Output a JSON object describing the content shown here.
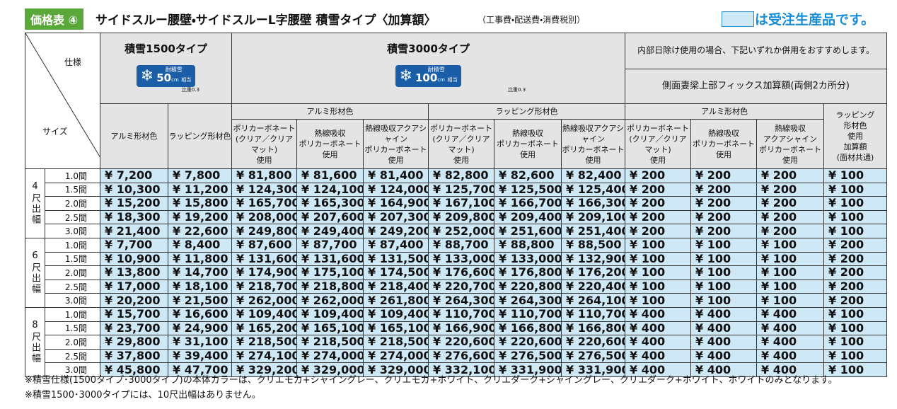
{
  "header": {
    "badge": "価格表 ④",
    "title": "サイドスルー腰壁・サイドスルーL字腰壁 積雪タイプ〈加算額〉",
    "note": "（工事費・配送費・消費税別）",
    "legend": "は受注生産品です。"
  },
  "table": {
    "corner_top": "仕様",
    "corner_bottom": "サイズ",
    "type1500": {
      "label": "積雪1500タイプ",
      "icon_top": "耐積雪",
      "icon_num": "50",
      "icon_unit": "cm",
      "icon_sub": "相当",
      "note": "比重0.3"
    },
    "type3000": {
      "label": "積雪3000タイプ",
      "icon_top": "耐積雪",
      "icon_num": "100",
      "icon_unit": "cm",
      "icon_sub": "相当",
      "note": "比重0.3"
    },
    "recommend": "内部日除け使用の場合、下記いずれか併用をおすすめします。",
    "fix": "側面妻梁上部フィックス加算額(両側2カ所分)",
    "groups": [
      "アルミ形材色",
      "ラッピング形材色",
      "アルミ形材色"
    ],
    "columns": [
      "アルミ形材色",
      "ラッピング形材色",
      "ポリカーボネート\n(クリア／クリアマット)\n使用",
      "熱線吸収\nポリカーボネート\n使用",
      "熱線吸収アクアシャイン\nポリカーボネート\n使用",
      "ポリカーボネート\n(クリア／クリアマット)\n使用",
      "熱線吸収\nポリカーボネート\n使用",
      "熱線吸収アクアシャイン\nポリカーボネート\n使用",
      "ポリカーボネート\n(クリア／クリアマット)\n使用",
      "熱線吸収\nポリカーボネート\n使用",
      "熱線吸収\nアクアシャイン\nポリカーボネート\n使用",
      "ラッピング\n形材色\n使用\n加算額\n(面材共通)"
    ],
    "sections": [
      {
        "label": "4尺出幅",
        "rows": [
          {
            "span": "1.0間",
            "values": [
              "¥ 7,200",
              "¥ 7,800",
              "¥ 81,800",
              "¥ 81,600",
              "¥ 81,400",
              "¥ 82,800",
              "¥ 82,600",
              "¥ 82,400",
              "¥ 200",
              "¥ 200",
              "¥ 200",
              "¥ 100"
            ]
          },
          {
            "span": "1.5間",
            "values": [
              "¥ 10,300",
              "¥ 11,200",
              "¥ 124,300",
              "¥ 124,100",
              "¥ 124,000",
              "¥ 125,700",
              "¥ 125,500",
              "¥ 125,400",
              "¥ 200",
              "¥ 200",
              "¥ 200",
              "¥ 100"
            ]
          },
          {
            "span": "2.0間",
            "values": [
              "¥ 15,200",
              "¥ 15,800",
              "¥ 165,700",
              "¥ 165,300",
              "¥ 164,900",
              "¥ 167,100",
              "¥ 166,700",
              "¥ 166,300",
              "¥ 200",
              "¥ 200",
              "¥ 200",
              "¥ 100"
            ]
          },
          {
            "span": "2.5間",
            "values": [
              "¥ 18,300",
              "¥ 19,200",
              "¥ 208,000",
              "¥ 207,600",
              "¥ 207,300",
              "¥ 209,800",
              "¥ 209,400",
              "¥ 209,100",
              "¥ 200",
              "¥ 200",
              "¥ 200",
              "¥ 100"
            ]
          },
          {
            "span": "3.0間",
            "values": [
              "¥ 21,400",
              "¥ 22,600",
              "¥ 249,800",
              "¥ 249,400",
              "¥ 249,200",
              "¥ 252,000",
              "¥ 251,600",
              "¥ 251,400",
              "¥ 200",
              "¥ 200",
              "¥ 200",
              "¥ 100"
            ]
          }
        ]
      },
      {
        "label": "6尺出幅",
        "rows": [
          {
            "span": "1.0間",
            "values": [
              "¥ 7,700",
              "¥ 8,400",
              "¥ 87,600",
              "¥ 87,700",
              "¥ 87,400",
              "¥ 88,700",
              "¥ 88,800",
              "¥ 88,500",
              "¥ 100",
              "¥ 100",
              "¥ 100",
              "¥ 200"
            ]
          },
          {
            "span": "1.5間",
            "values": [
              "¥ 10,900",
              "¥ 11,800",
              "¥ 131,600",
              "¥ 131,600",
              "¥ 131,500",
              "¥ 133,000",
              "¥ 133,000",
              "¥ 132,900",
              "¥ 100",
              "¥ 100",
              "¥ 100",
              "¥ 200"
            ]
          },
          {
            "span": "2.0間",
            "values": [
              "¥ 13,800",
              "¥ 14,700",
              "¥ 174,900",
              "¥ 175,100",
              "¥ 174,500",
              "¥ 176,600",
              "¥ 176,800",
              "¥ 176,200",
              "¥ 100",
              "¥ 100",
              "¥ 100",
              "¥ 200"
            ]
          },
          {
            "span": "2.5間",
            "values": [
              "¥ 17,000",
              "¥ 18,100",
              "¥ 218,700",
              "¥ 218,800",
              "¥ 218,400",
              "¥ 220,700",
              "¥ 220,800",
              "¥ 220,400",
              "¥ 100",
              "¥ 100",
              "¥ 100",
              "¥ 200"
            ]
          },
          {
            "span": "3.0間",
            "values": [
              "¥ 20,200",
              "¥ 21,500",
              "¥ 262,000",
              "¥ 262,000",
              "¥ 261,800",
              "¥ 264,300",
              "¥ 264,300",
              "¥ 264,100",
              "¥ 100",
              "¥ 100",
              "¥ 100",
              "¥ 200"
            ]
          }
        ]
      },
      {
        "label": "8尺出幅",
        "rows": [
          {
            "span": "1.0間",
            "values": [
              "¥ 15,700",
              "¥ 16,600",
              "¥ 109,400",
              "¥ 109,400",
              "¥ 109,400",
              "¥ 110,700",
              "¥ 110,700",
              "¥ 110,700",
              "¥ 400",
              "¥ 400",
              "¥ 400",
              "¥ 100"
            ]
          },
          {
            "span": "1.5間",
            "values": [
              "¥ 23,700",
              "¥ 24,900",
              "¥ 165,200",
              "¥ 165,100",
              "¥ 165,100",
              "¥ 166,900",
              "¥ 166,800",
              "¥ 166,800",
              "¥ 400",
              "¥ 400",
              "¥ 400",
              "¥ 100"
            ]
          },
          {
            "span": "2.0間",
            "values": [
              "¥ 29,800",
              "¥ 31,100",
              "¥ 218,500",
              "¥ 218,500",
              "¥ 218,500",
              "¥ 220,600",
              "¥ 220,600",
              "¥ 220,600",
              "¥ 400",
              "¥ 400",
              "¥ 400",
              "¥ 100"
            ]
          },
          {
            "span": "2.5間",
            "values": [
              "¥ 37,800",
              "¥ 39,400",
              "¥ 274,100",
              "¥ 274,000",
              "¥ 274,000",
              "¥ 276,600",
              "¥ 276,500",
              "¥ 276,500",
              "¥ 400",
              "¥ 400",
              "¥ 400",
              "¥ 100"
            ]
          },
          {
            "span": "3.0間",
            "values": [
              "¥ 45,800",
              "¥ 47,700",
              "¥ 329,200",
              "¥ 329,000",
              "¥ 329,000",
              "¥ 332,100",
              "¥ 331,900",
              "¥ 331,900",
              "¥ 400",
              "¥ 400",
              "¥ 400",
              "¥ 100"
            ]
          }
        ]
      }
    ]
  },
  "footnotes": [
    "※積雪仕様(1500タイプ･3000タイプ)の本体カラーは、クリエモカ+シャイングレー、クリエモカ+ホワイト、クリエダーク+シャイングレー、クリエダーク+ホワイト、ホワイトのみとなります。",
    "※積雪1500･3000タイプには、10尺出幅はありません。"
  ]
}
